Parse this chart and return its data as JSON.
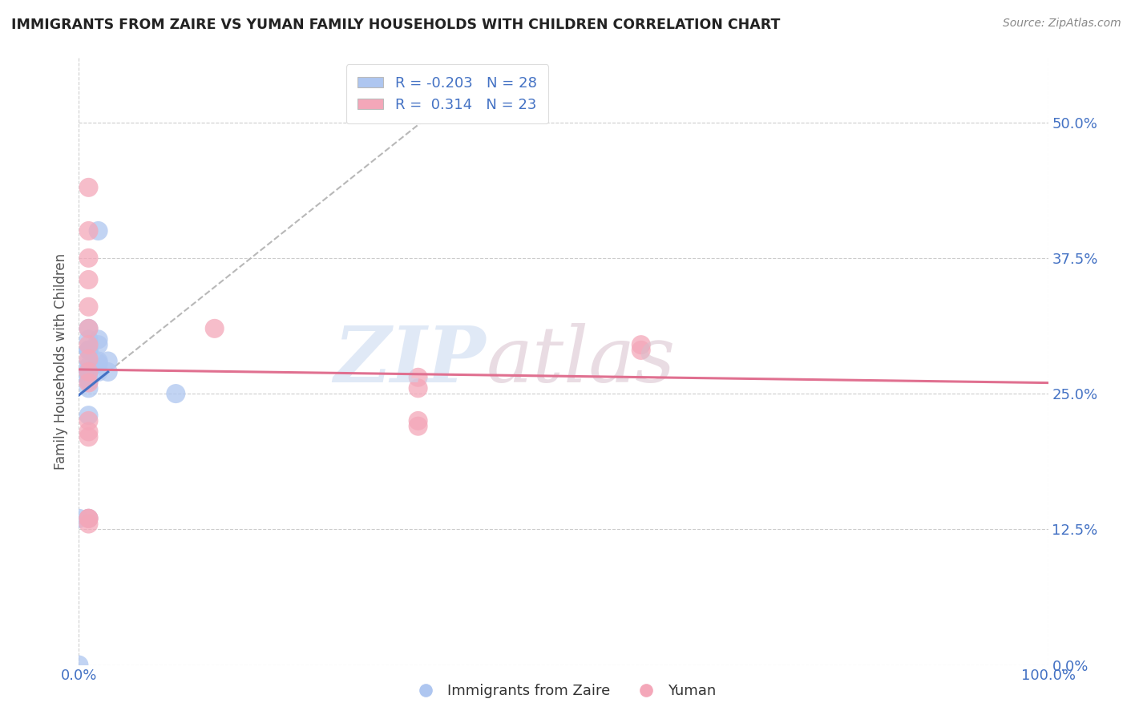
{
  "title": "IMMIGRANTS FROM ZAIRE VS YUMAN FAMILY HOUSEHOLDS WITH CHILDREN CORRELATION CHART",
  "source": "Source: ZipAtlas.com",
  "ylabel": "Family Households with Children",
  "xlim": [
    0.0,
    1.0
  ],
  "ylim": [
    0.0,
    0.56
  ],
  "yticks": [
    0.0,
    0.125,
    0.25,
    0.375,
    0.5
  ],
  "ytick_labels": [
    "0.0%",
    "12.5%",
    "25.0%",
    "37.5%",
    "50.0%"
  ],
  "xticks": [
    0.0,
    1.0
  ],
  "xtick_labels": [
    "0.0%",
    "100.0%"
  ],
  "blue_color": "#aec6f0",
  "pink_color": "#f4a7b9",
  "trend_blue": "#4472c4",
  "trend_pink": "#e07090",
  "trend_gray": "#b8b8b8",
  "blue_x": [
    0.0,
    0.0,
    0.01,
    0.01,
    0.01,
    0.01,
    0.01,
    0.01,
    0.01,
    0.01,
    0.01,
    0.01,
    0.01,
    0.01,
    0.01,
    0.01,
    0.01,
    0.02,
    0.02,
    0.02,
    0.02,
    0.02,
    0.03,
    0.03,
    0.02,
    0.01,
    0.1,
    0.01
  ],
  "blue_y": [
    0.0,
    0.135,
    0.27,
    0.29,
    0.31,
    0.265,
    0.255,
    0.28,
    0.27,
    0.262,
    0.275,
    0.29,
    0.3,
    0.27,
    0.262,
    0.29,
    0.27,
    0.3,
    0.27,
    0.295,
    0.278,
    0.28,
    0.27,
    0.28,
    0.4,
    0.23,
    0.25,
    0.135
  ],
  "pink_x": [
    0.01,
    0.01,
    0.01,
    0.01,
    0.01,
    0.01,
    0.01,
    0.01,
    0.01,
    0.01,
    0.01,
    0.01,
    0.01,
    0.14,
    0.35,
    0.35,
    0.35,
    0.58,
    0.58,
    0.01,
    0.01,
    0.01,
    0.35
  ],
  "pink_y": [
    0.44,
    0.4,
    0.375,
    0.355,
    0.33,
    0.31,
    0.295,
    0.282,
    0.27,
    0.26,
    0.215,
    0.225,
    0.21,
    0.31,
    0.265,
    0.255,
    0.225,
    0.295,
    0.29,
    0.135,
    0.135,
    0.13,
    0.22
  ],
  "legend_labels": [
    "R = -0.203   N = 28",
    "R =  0.314   N = 23"
  ],
  "bottom_labels": [
    "Immigrants from Zaire",
    "Yuman"
  ],
  "watermark_zip": "ZIP",
  "watermark_atlas": "atlas"
}
